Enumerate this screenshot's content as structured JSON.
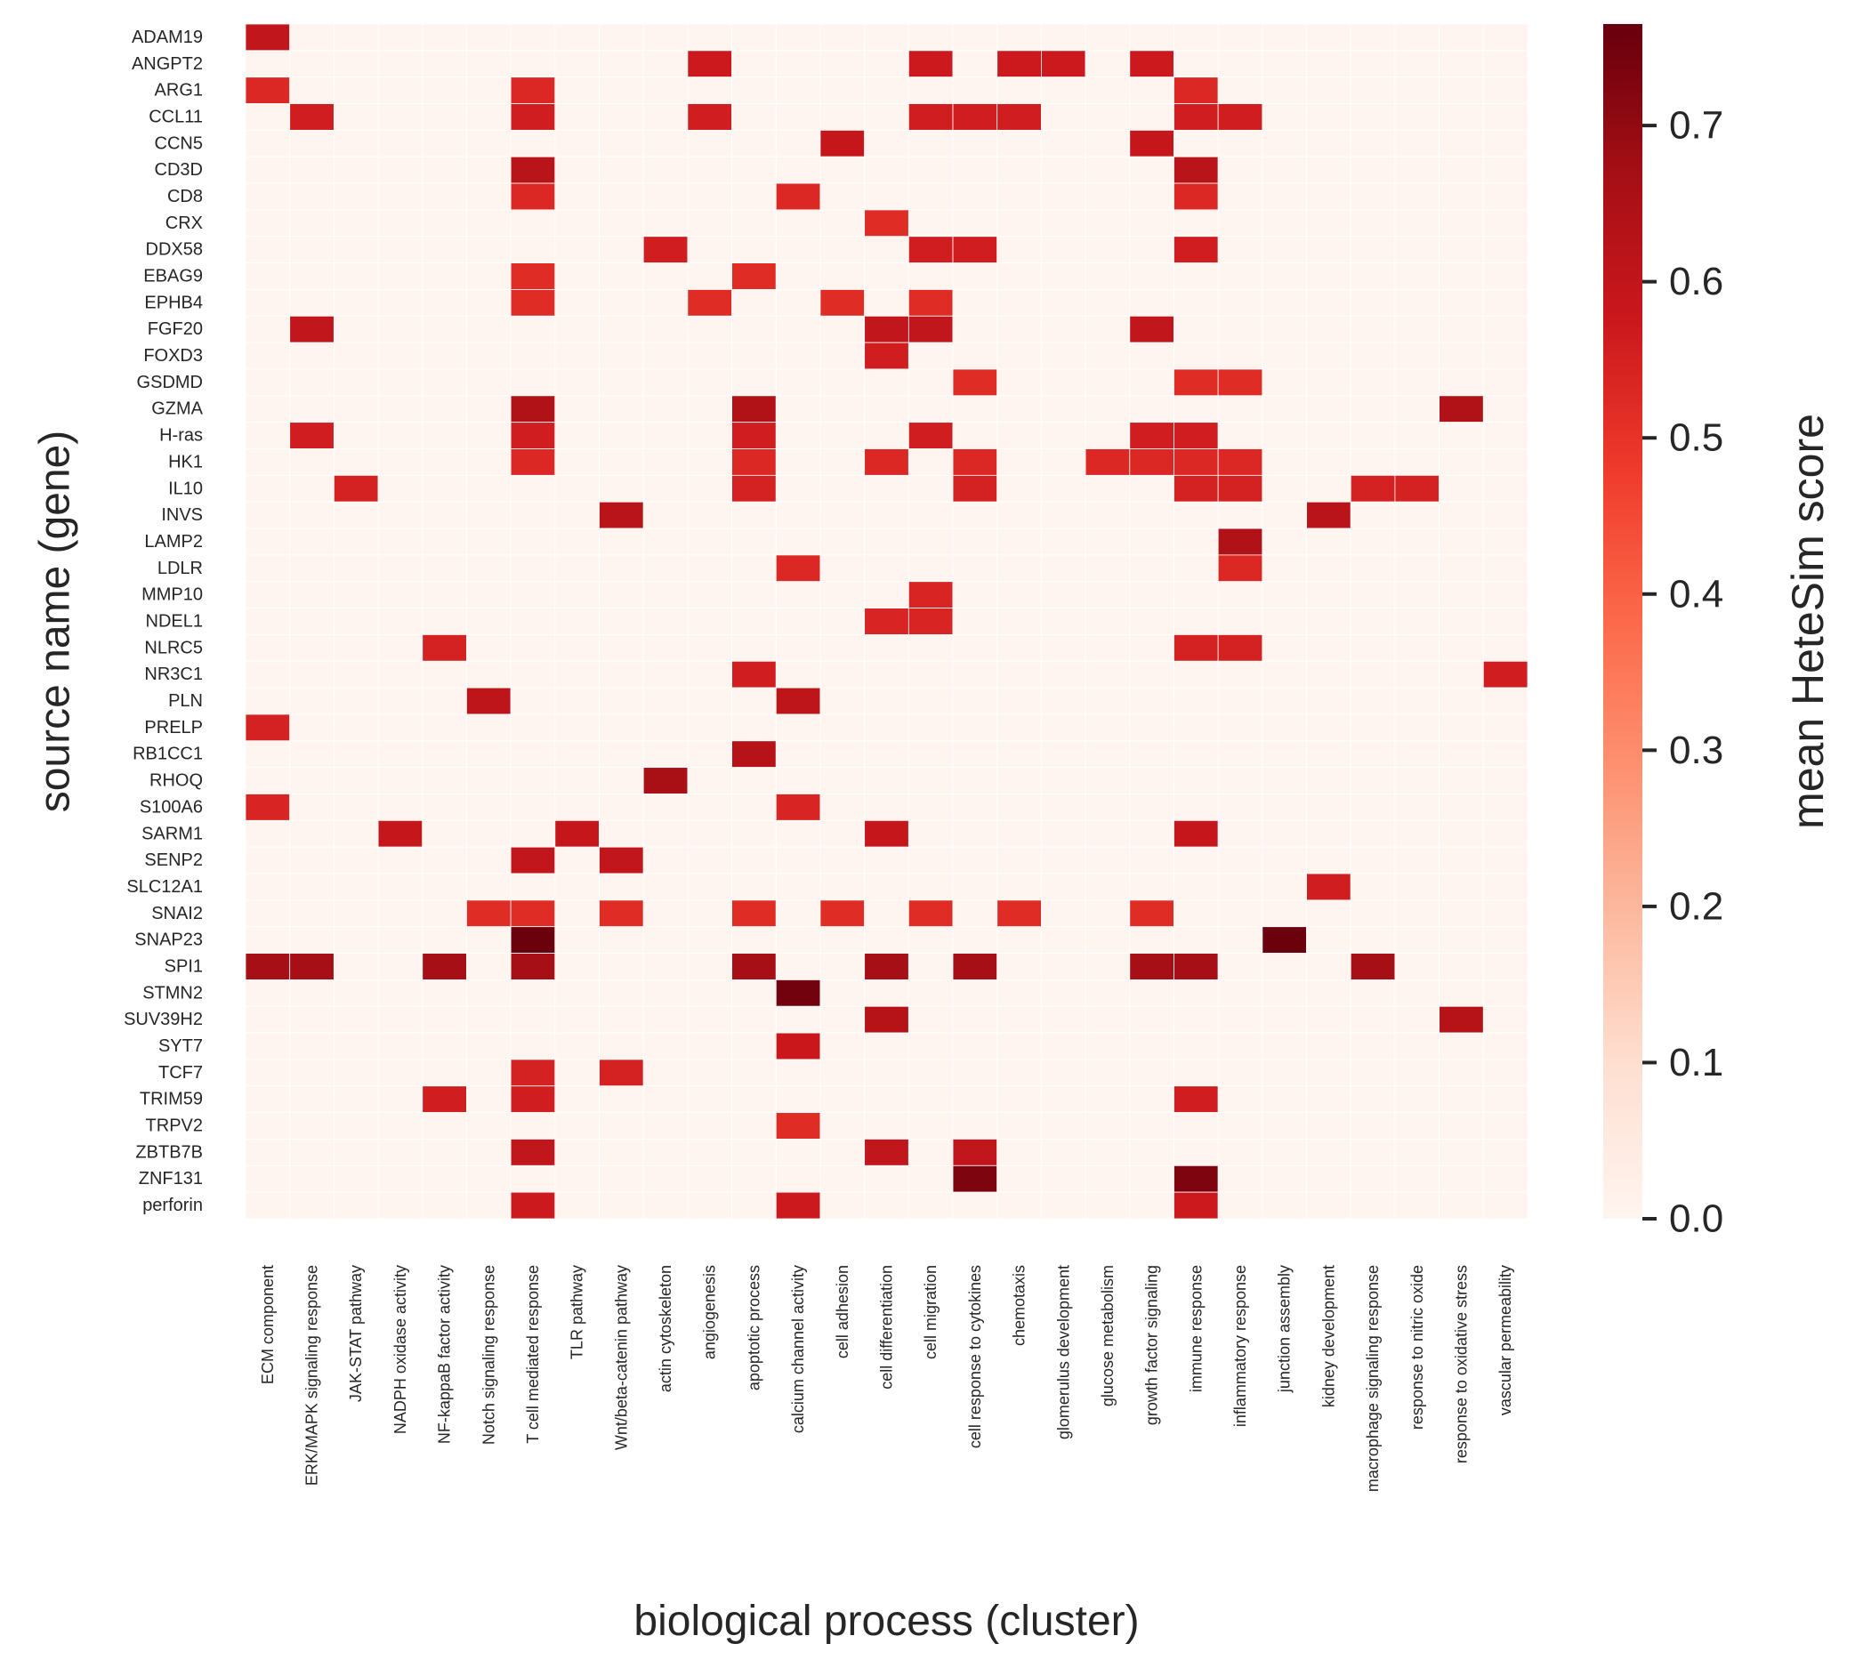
{
  "chart_data": {
    "type": "heatmap",
    "title": "",
    "xlabel": "biological process (cluster)",
    "ylabel": "source name (gene)",
    "colorbar_label": "mean HeteSim score",
    "colormap": "Reds",
    "colormap_stops": [
      "#fff5f0",
      "#fee0d2",
      "#fcbba1",
      "#fc9272",
      "#fb6a4a",
      "#ef3b2c",
      "#cb181d",
      "#a50f15",
      "#67000d"
    ],
    "vmin": 0.0,
    "vmax": 0.765,
    "colorbar_ticks": [
      0.0,
      0.1,
      0.2,
      0.3,
      0.4,
      0.5,
      0.6,
      0.7
    ],
    "colorbar_tick_labels": [
      "0.0",
      "0.1",
      "0.2",
      "0.3",
      "0.4",
      "0.5",
      "0.6",
      "0.7"
    ],
    "x_categories": [
      "ECM component",
      "ERK/MAPK signaling response",
      "JAK-STAT pathway",
      "NADPH oxidase activity",
      "NF-kappaB factor activity",
      "Notch signaling response",
      "T cell mediated response",
      "TLR pathway",
      "Wnt/beta-catenin pathway",
      "actin cytoskeleton",
      "angiogenesis",
      "apoptotic process",
      "calcium channel activity",
      "cell adhesion",
      "cell differentiation",
      "cell migration",
      "cell response to cytokines",
      "chemotaxis",
      "glomerulus development",
      "glucose metabolism",
      "growth factor signaling",
      "immune response",
      "inflammatory response",
      "junction assembly",
      "kidney development",
      "macrophage signaling response",
      "response to nitric oxide",
      "response to oxidative stress",
      "vascular permeability"
    ],
    "y_categories": [
      "ADAM19",
      "ANGPT2",
      "ARG1",
      "CCL11",
      "CCN5",
      "CD3D",
      "CD8",
      "CRX",
      "DDX58",
      "EBAG9",
      "EPHB4",
      "FGF20",
      "FOXD3",
      "GSDMD",
      "GZMA",
      "H-ras",
      "HK1",
      "IL10",
      "INVS",
      "LAMP2",
      "LDLR",
      "MMP10",
      "NDEL1",
      "NLRC5",
      "NR3C1",
      "PLN",
      "PRELP",
      "RB1CC1",
      "RHOQ",
      "S100A6",
      "SARM1",
      "SENP2",
      "SLC12A1",
      "SNAI2",
      "SNAP23",
      "SPI1",
      "STMN2",
      "SUV39H2",
      "SYT7",
      "TCF7",
      "TRIM59",
      "TRPV2",
      "ZBTB7B",
      "ZNF131",
      "perforin"
    ],
    "background_value": 0.0,
    "cells": [
      {
        "gene": "ADAM19",
        "process": "ECM component",
        "value": 0.6
      },
      {
        "gene": "ANGPT2",
        "process": "angiogenesis",
        "value": 0.57
      },
      {
        "gene": "ANGPT2",
        "process": "cell migration",
        "value": 0.57
      },
      {
        "gene": "ANGPT2",
        "process": "chemotaxis",
        "value": 0.57
      },
      {
        "gene": "ANGPT2",
        "process": "glomerulus development",
        "value": 0.57
      },
      {
        "gene": "ANGPT2",
        "process": "growth factor signaling",
        "value": 0.57
      },
      {
        "gene": "ARG1",
        "process": "ECM component",
        "value": 0.53
      },
      {
        "gene": "ARG1",
        "process": "T cell mediated response",
        "value": 0.53
      },
      {
        "gene": "ARG1",
        "process": "immune response",
        "value": 0.53
      },
      {
        "gene": "CCL11",
        "process": "ERK/MAPK signaling response",
        "value": 0.56
      },
      {
        "gene": "CCL11",
        "process": "T cell mediated response",
        "value": 0.56
      },
      {
        "gene": "CCL11",
        "process": "angiogenesis",
        "value": 0.56
      },
      {
        "gene": "CCL11",
        "process": "cell migration",
        "value": 0.56
      },
      {
        "gene": "CCL11",
        "process": "cell response to cytokines",
        "value": 0.56
      },
      {
        "gene": "CCL11",
        "process": "chemotaxis",
        "value": 0.56
      },
      {
        "gene": "CCL11",
        "process": "immune response",
        "value": 0.56
      },
      {
        "gene": "CCL11",
        "process": "inflammatory response",
        "value": 0.56
      },
      {
        "gene": "CCN5",
        "process": "cell adhesion",
        "value": 0.59
      },
      {
        "gene": "CCN5",
        "process": "growth factor signaling",
        "value": 0.59
      },
      {
        "gene": "CD3D",
        "process": "T cell mediated response",
        "value": 0.62
      },
      {
        "gene": "CD3D",
        "process": "immune response",
        "value": 0.62
      },
      {
        "gene": "CD8",
        "process": "T cell mediated response",
        "value": 0.53
      },
      {
        "gene": "CD8",
        "process": "calcium channel activity",
        "value": 0.53
      },
      {
        "gene": "CD8",
        "process": "immune response",
        "value": 0.53
      },
      {
        "gene": "CRX",
        "process": "cell differentiation",
        "value": 0.52
      },
      {
        "gene": "DDX58",
        "process": "actin cytoskeleton",
        "value": 0.56
      },
      {
        "gene": "DDX58",
        "process": "cell migration",
        "value": 0.56
      },
      {
        "gene": "DDX58",
        "process": "cell response to cytokines",
        "value": 0.56
      },
      {
        "gene": "DDX58",
        "process": "immune response",
        "value": 0.56
      },
      {
        "gene": "EBAG9",
        "process": "T cell mediated response",
        "value": 0.52
      },
      {
        "gene": "EBAG9",
        "process": "apoptotic process",
        "value": 0.52
      },
      {
        "gene": "EPHB4",
        "process": "T cell mediated response",
        "value": 0.52
      },
      {
        "gene": "EPHB4",
        "process": "angiogenesis",
        "value": 0.52
      },
      {
        "gene": "EPHB4",
        "process": "cell adhesion",
        "value": 0.52
      },
      {
        "gene": "EPHB4",
        "process": "cell migration",
        "value": 0.52
      },
      {
        "gene": "FGF20",
        "process": "ERK/MAPK signaling response",
        "value": 0.6
      },
      {
        "gene": "FGF20",
        "process": "cell differentiation",
        "value": 0.6
      },
      {
        "gene": "FGF20",
        "process": "cell migration",
        "value": 0.6
      },
      {
        "gene": "FGF20",
        "process": "growth factor signaling",
        "value": 0.6
      },
      {
        "gene": "FOXD3",
        "process": "cell differentiation",
        "value": 0.56
      },
      {
        "gene": "GSDMD",
        "process": "cell response to cytokines",
        "value": 0.52
      },
      {
        "gene": "GSDMD",
        "process": "immune response",
        "value": 0.52
      },
      {
        "gene": "GSDMD",
        "process": "inflammatory response",
        "value": 0.52
      },
      {
        "gene": "GZMA",
        "process": "T cell mediated response",
        "value": 0.64
      },
      {
        "gene": "GZMA",
        "process": "apoptotic process",
        "value": 0.64
      },
      {
        "gene": "GZMA",
        "process": "response to oxidative stress",
        "value": 0.64
      },
      {
        "gene": "H-ras",
        "process": "ERK/MAPK signaling response",
        "value": 0.56
      },
      {
        "gene": "H-ras",
        "process": "T cell mediated response",
        "value": 0.56
      },
      {
        "gene": "H-ras",
        "process": "apoptotic process",
        "value": 0.56
      },
      {
        "gene": "H-ras",
        "process": "cell migration",
        "value": 0.56
      },
      {
        "gene": "H-ras",
        "process": "growth factor signaling",
        "value": 0.56
      },
      {
        "gene": "H-ras",
        "process": "immune response",
        "value": 0.56
      },
      {
        "gene": "HK1",
        "process": "T cell mediated response",
        "value": 0.53
      },
      {
        "gene": "HK1",
        "process": "apoptotic process",
        "value": 0.53
      },
      {
        "gene": "HK1",
        "process": "cell differentiation",
        "value": 0.53
      },
      {
        "gene": "HK1",
        "process": "cell response to cytokines",
        "value": 0.53
      },
      {
        "gene": "HK1",
        "process": "glucose metabolism",
        "value": 0.53
      },
      {
        "gene": "HK1",
        "process": "growth factor signaling",
        "value": 0.53
      },
      {
        "gene": "HK1",
        "process": "immune response",
        "value": 0.53
      },
      {
        "gene": "HK1",
        "process": "inflammatory response",
        "value": 0.53
      },
      {
        "gene": "IL10",
        "process": "JAK-STAT pathway",
        "value": 0.55
      },
      {
        "gene": "IL10",
        "process": "apoptotic process",
        "value": 0.55
      },
      {
        "gene": "IL10",
        "process": "cell response to cytokines",
        "value": 0.55
      },
      {
        "gene": "IL10",
        "process": "immune response",
        "value": 0.55
      },
      {
        "gene": "IL10",
        "process": "inflammatory response",
        "value": 0.55
      },
      {
        "gene": "IL10",
        "process": "macrophage signaling response",
        "value": 0.55
      },
      {
        "gene": "IL10",
        "process": "response to nitric oxide",
        "value": 0.55
      },
      {
        "gene": "INVS",
        "process": "Wnt/beta-catenin pathway",
        "value": 0.62
      },
      {
        "gene": "INVS",
        "process": "kidney development",
        "value": 0.62
      },
      {
        "gene": "LAMP2",
        "process": "inflammatory response",
        "value": 0.64
      },
      {
        "gene": "LDLR",
        "process": "calcium channel activity",
        "value": 0.53
      },
      {
        "gene": "LDLR",
        "process": "inflammatory response",
        "value": 0.53
      },
      {
        "gene": "MMP10",
        "process": "cell migration",
        "value": 0.54
      },
      {
        "gene": "NDEL1",
        "process": "cell differentiation",
        "value": 0.54
      },
      {
        "gene": "NDEL1",
        "process": "cell migration",
        "value": 0.54
      },
      {
        "gene": "NLRC5",
        "process": "NF-kappaB factor activity",
        "value": 0.55
      },
      {
        "gene": "NLRC5",
        "process": "immune response",
        "value": 0.55
      },
      {
        "gene": "NLRC5",
        "process": "inflammatory response",
        "value": 0.55
      },
      {
        "gene": "NR3C1",
        "process": "apoptotic process",
        "value": 0.56
      },
      {
        "gene": "NR3C1",
        "process": "vascular permeability",
        "value": 0.56
      },
      {
        "gene": "PLN",
        "process": "Notch signaling response",
        "value": 0.61
      },
      {
        "gene": "PLN",
        "process": "calcium channel activity",
        "value": 0.61
      },
      {
        "gene": "PRELP",
        "process": "ECM component",
        "value": 0.55
      },
      {
        "gene": "RB1CC1",
        "process": "apoptotic process",
        "value": 0.63
      },
      {
        "gene": "RHOQ",
        "process": "actin cytoskeleton",
        "value": 0.66
      },
      {
        "gene": "S100A6",
        "process": "ECM component",
        "value": 0.54
      },
      {
        "gene": "S100A6",
        "process": "calcium channel activity",
        "value": 0.54
      },
      {
        "gene": "SARM1",
        "process": "NADPH oxidase activity",
        "value": 0.59
      },
      {
        "gene": "SARM1",
        "process": "TLR pathway",
        "value": 0.59
      },
      {
        "gene": "SARM1",
        "process": "cell differentiation",
        "value": 0.59
      },
      {
        "gene": "SARM1",
        "process": "immune response",
        "value": 0.59
      },
      {
        "gene": "SENP2",
        "process": "T cell mediated response",
        "value": 0.6
      },
      {
        "gene": "SENP2",
        "process": "Wnt/beta-catenin pathway",
        "value": 0.6
      },
      {
        "gene": "SLC12A1",
        "process": "kidney development",
        "value": 0.56
      },
      {
        "gene": "SNAI2",
        "process": "Notch signaling response",
        "value": 0.52
      },
      {
        "gene": "SNAI2",
        "process": "T cell mediated response",
        "value": 0.52
      },
      {
        "gene": "SNAI2",
        "process": "Wnt/beta-catenin pathway",
        "value": 0.52
      },
      {
        "gene": "SNAI2",
        "process": "apoptotic process",
        "value": 0.52
      },
      {
        "gene": "SNAI2",
        "process": "cell adhesion",
        "value": 0.52
      },
      {
        "gene": "SNAI2",
        "process": "cell migration",
        "value": 0.52
      },
      {
        "gene": "SNAI2",
        "process": "chemotaxis",
        "value": 0.52
      },
      {
        "gene": "SNAI2",
        "process": "growth factor signaling",
        "value": 0.52
      },
      {
        "gene": "SNAP23",
        "process": "T cell mediated response",
        "value": 0.76
      },
      {
        "gene": "SNAP23",
        "process": "junction assembly",
        "value": 0.76
      },
      {
        "gene": "SPI1",
        "process": "ECM component",
        "value": 0.67
      },
      {
        "gene": "SPI1",
        "process": "ERK/MAPK signaling response",
        "value": 0.67
      },
      {
        "gene": "SPI1",
        "process": "NF-kappaB factor activity",
        "value": 0.67
      },
      {
        "gene": "SPI1",
        "process": "T cell mediated response",
        "value": 0.67
      },
      {
        "gene": "SPI1",
        "process": "apoptotic process",
        "value": 0.67
      },
      {
        "gene": "SPI1",
        "process": "cell differentiation",
        "value": 0.67
      },
      {
        "gene": "SPI1",
        "process": "cell response to cytokines",
        "value": 0.67
      },
      {
        "gene": "SPI1",
        "process": "growth factor signaling",
        "value": 0.67
      },
      {
        "gene": "SPI1",
        "process": "immune response",
        "value": 0.67
      },
      {
        "gene": "SPI1",
        "process": "macrophage signaling response",
        "value": 0.67
      },
      {
        "gene": "STMN2",
        "process": "calcium channel activity",
        "value": 0.75
      },
      {
        "gene": "SUV39H2",
        "process": "cell differentiation",
        "value": 0.63
      },
      {
        "gene": "SUV39H2",
        "process": "response to oxidative stress",
        "value": 0.63
      },
      {
        "gene": "SYT7",
        "process": "calcium channel activity",
        "value": 0.58
      },
      {
        "gene": "TCF7",
        "process": "T cell mediated response",
        "value": 0.55
      },
      {
        "gene": "TCF7",
        "process": "Wnt/beta-catenin pathway",
        "value": 0.55
      },
      {
        "gene": "TRIM59",
        "process": "NF-kappaB factor activity",
        "value": 0.56
      },
      {
        "gene": "TRIM59",
        "process": "T cell mediated response",
        "value": 0.56
      },
      {
        "gene": "TRIM59",
        "process": "immune response",
        "value": 0.56
      },
      {
        "gene": "TRPV2",
        "process": "calcium channel activity",
        "value": 0.52
      },
      {
        "gene": "ZBTB7B",
        "process": "T cell mediated response",
        "value": 0.6
      },
      {
        "gene": "ZBTB7B",
        "process": "cell differentiation",
        "value": 0.6
      },
      {
        "gene": "ZBTB7B",
        "process": "cell response to cytokines",
        "value": 0.6
      },
      {
        "gene": "ZNF131",
        "process": "cell response to cytokines",
        "value": 0.73
      },
      {
        "gene": "ZNF131",
        "process": "immune response",
        "value": 0.73
      },
      {
        "gene": "perforin",
        "process": "T cell mediated response",
        "value": 0.57
      },
      {
        "gene": "perforin",
        "process": "calcium channel activity",
        "value": 0.57
      },
      {
        "gene": "perforin",
        "process": "immune response",
        "value": 0.57
      }
    ]
  }
}
